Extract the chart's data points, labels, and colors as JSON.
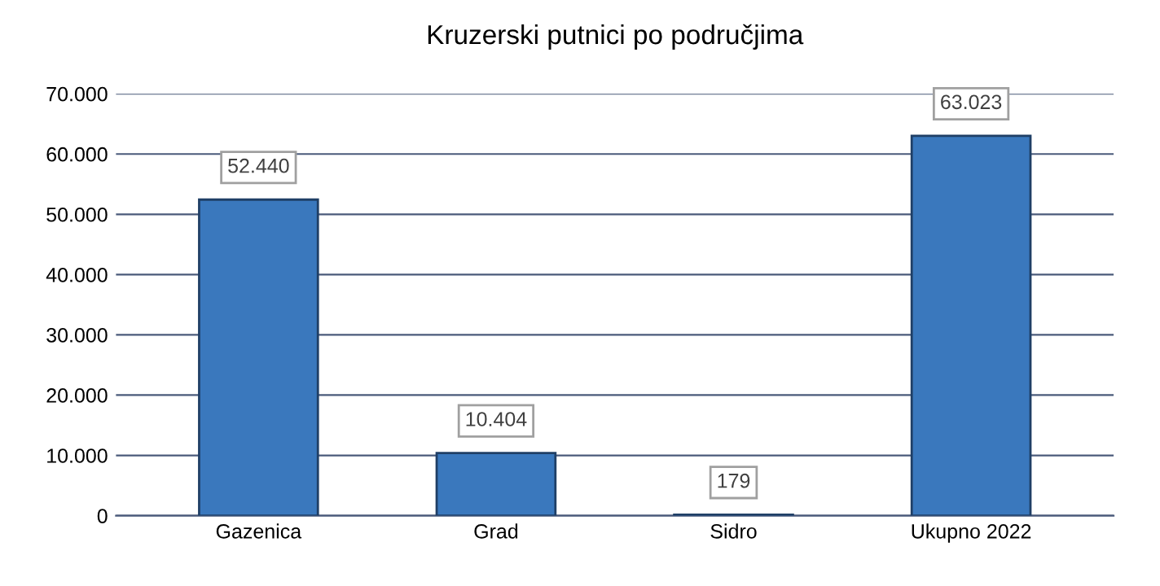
{
  "chart_data": {
    "type": "bar",
    "title": "Kruzerski putnici po područjima",
    "categories": [
      "Gazenica",
      "Grad",
      "Sidro",
      "Ukupno 2022"
    ],
    "values": [
      52440,
      10404,
      179,
      63023
    ],
    "value_labels": [
      "52.440",
      "10.404",
      "179",
      "63.023"
    ],
    "color": "#3a78bd",
    "ylim": [
      0,
      70000
    ],
    "yticks": [
      0,
      {
        "value": 10000,
        "label": "10.000"
      },
      {
        "value": 20000,
        "label": "20.000"
      },
      {
        "value": 30000,
        "label": "30.000"
      },
      {
        "value": 40000,
        "label": "40.000"
      },
      {
        "value": 50000,
        "label": "50.000"
      },
      {
        "value": 60000,
        "label": "60.000"
      },
      {
        "value": 70000,
        "label": "70.000"
      }
    ],
    "grid": "y",
    "legend": false
  }
}
